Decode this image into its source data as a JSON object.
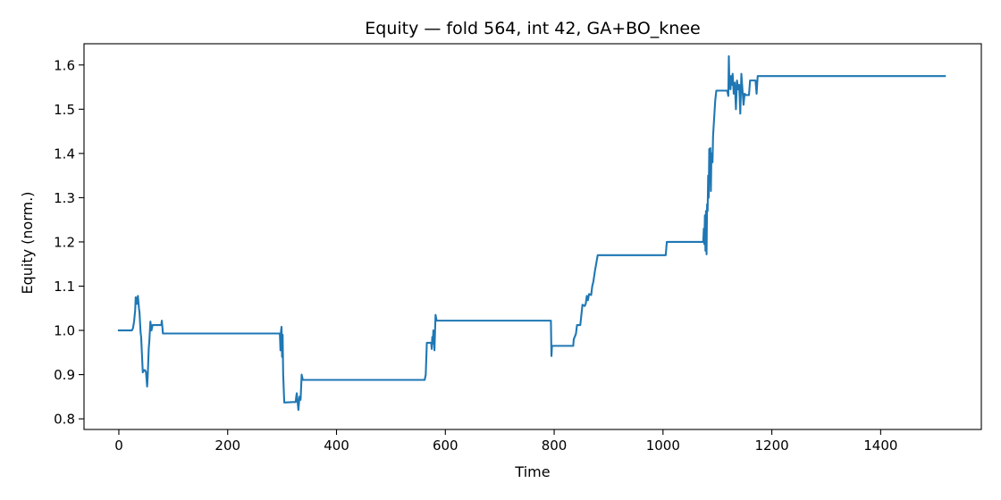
{
  "chart_data": {
    "type": "line",
    "title": "Equity — fold 564, int 42, GA+BO_knee",
    "xlabel": "Time",
    "ylabel": "Equity (norm.)",
    "xlim": [
      -64,
      1585
    ],
    "ylim": [
      0.776,
      1.648
    ],
    "xticks": [
      0,
      200,
      400,
      600,
      800,
      1000,
      1200,
      1400
    ],
    "xtick_labels": [
      "0",
      "200",
      "400",
      "600",
      "800",
      "1000",
      "1200",
      "1400"
    ],
    "yticks": [
      0.8,
      0.9,
      1.0,
      1.1,
      1.2,
      1.3,
      1.4,
      1.5,
      1.6
    ],
    "ytick_labels": [
      "0.8",
      "0.9",
      "1.0",
      "1.1",
      "1.2",
      "1.3",
      "1.4",
      "1.5",
      "1.6"
    ],
    "grid": false,
    "legend": "none",
    "line_color": "#1f77b4",
    "series": [
      {
        "x": [
          0,
          24,
          26,
          28,
          30,
          31,
          33,
          35,
          37,
          38,
          40,
          41,
          44,
          46,
          48,
          50,
          52,
          53,
          55,
          56,
          58,
          60,
          62,
          70,
          78,
          79,
          80,
          81,
          90,
          120,
          295,
          296,
          297,
          298,
          299,
          300,
          301,
          302,
          304,
          320,
          322,
          325,
          326,
          327,
          328,
          330,
          332,
          334,
          336,
          338,
          340,
          400,
          562,
          564,
          566,
          568,
          574,
          575,
          576,
          577,
          578,
          580,
          582,
          584,
          585,
          587,
          650,
          700,
          768,
          794,
          795,
          796,
          797,
          798,
          820,
          835,
          836,
          840,
          842,
          845,
          848,
          852,
          856,
          858,
          860,
          862,
          864,
          868,
          870,
          872,
          875,
          880,
          950,
          1005,
          1007,
          1060,
          1074,
          1075,
          1076,
          1077,
          1078,
          1079,
          1080,
          1081,
          1082,
          1083,
          1084,
          1085,
          1086,
          1087,
          1088,
          1089,
          1090,
          1091,
          1092,
          1094,
          1096,
          1098,
          1100,
          1103,
          1106,
          1110,
          1118,
          1120,
          1121,
          1122,
          1124,
          1125,
          1127,
          1128,
          1130,
          1132,
          1134,
          1136,
          1138,
          1140,
          1142,
          1144,
          1146,
          1148,
          1150,
          1152,
          1156,
          1158,
          1160,
          1163,
          1166,
          1168,
          1170,
          1172,
          1174,
          1176,
          1200,
          1300,
          1400,
          1500,
          1518
        ],
        "y": [
          1.0,
          1.0,
          1.005,
          1.02,
          1.045,
          1.075,
          1.06,
          1.078,
          1.05,
          1.04,
          0.995,
          0.985,
          0.905,
          0.91,
          0.91,
          0.905,
          0.873,
          0.895,
          0.96,
          0.975,
          1.02,
          1.0,
          1.012,
          1.012,
          1.012,
          1.022,
          1.008,
          0.993,
          0.993,
          0.993,
          0.993,
          0.99,
          0.955,
          0.998,
          1.008,
          0.94,
          0.99,
          0.9,
          0.837,
          0.838,
          0.838,
          0.838,
          0.85,
          0.858,
          0.845,
          0.82,
          0.85,
          0.843,
          0.9,
          0.888,
          0.888,
          0.888,
          0.888,
          0.9,
          0.972,
          0.972,
          0.972,
          0.958,
          0.985,
          0.97,
          1.0,
          0.955,
          1.035,
          1.022,
          1.022,
          1.022,
          1.022,
          1.022,
          1.022,
          1.022,
          0.942,
          0.965,
          0.965,
          0.965,
          0.965,
          0.965,
          0.98,
          0.992,
          1.012,
          1.012,
          1.012,
          1.058,
          1.055,
          1.06,
          1.078,
          1.068,
          1.082,
          1.08,
          1.1,
          1.11,
          1.135,
          1.17,
          1.17,
          1.17,
          1.2,
          1.2,
          1.2,
          1.23,
          1.195,
          1.26,
          1.18,
          1.27,
          1.172,
          1.285,
          1.27,
          1.35,
          1.3,
          1.41,
          1.38,
          1.412,
          1.315,
          1.4,
          1.38,
          1.38,
          1.44,
          1.48,
          1.52,
          1.542,
          1.542,
          1.542,
          1.542,
          1.542,
          1.542,
          1.53,
          1.62,
          1.56,
          1.545,
          1.575,
          1.555,
          1.58,
          1.535,
          1.56,
          1.5,
          1.565,
          1.545,
          1.555,
          1.49,
          1.58,
          1.545,
          1.51,
          1.535,
          1.532,
          1.532,
          1.532,
          1.565,
          1.565,
          1.565,
          1.565,
          1.565,
          1.535,
          1.575,
          1.575,
          1.575,
          1.575,
          1.575,
          1.575,
          1.575
        ]
      }
    ]
  }
}
